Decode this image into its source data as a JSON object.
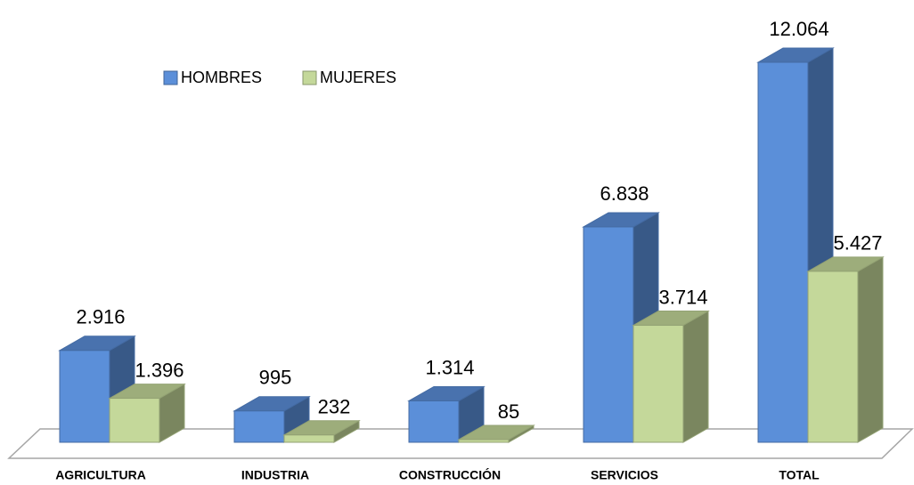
{
  "chart_data": {
    "type": "bar3d",
    "categories": [
      "AGRICULTURA",
      "INDUSTRIA",
      "CONSTRUCCIÓN",
      "SERVICIOS",
      "TOTAL"
    ],
    "series": [
      {
        "name": "HOMBRES",
        "color": "#5b8fd9",
        "values": [
          2916,
          995,
          1314,
          6838,
          12064
        ],
        "value_labels": [
          "2.916",
          "995",
          "1.314",
          "6.838",
          "12.064"
        ]
      },
      {
        "name": "MUJERES",
        "color": "#c4d89a",
        "values": [
          1396,
          232,
          85,
          3714,
          5427
        ],
        "value_labels": [
          "1.396",
          "232",
          "85",
          "3.714",
          "5.427"
        ]
      }
    ],
    "legend": "top-left"
  }
}
